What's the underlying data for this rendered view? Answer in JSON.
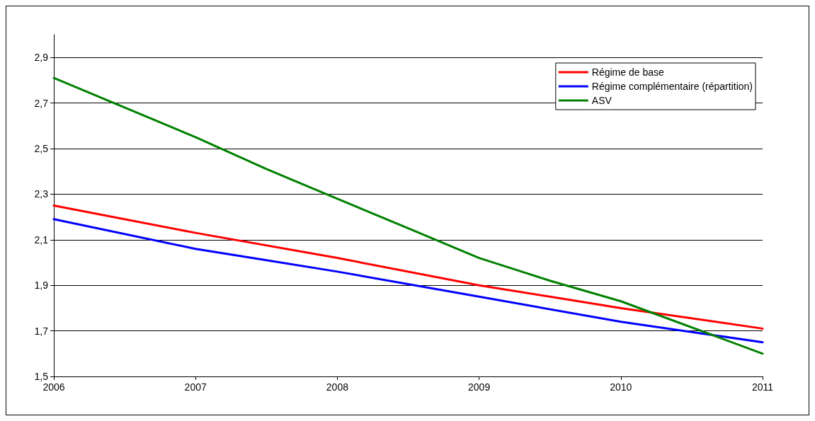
{
  "chart_data": {
    "type": "line",
    "xlim": [
      2006,
      2011
    ],
    "xticks": [
      2006,
      2007,
      2008,
      2009,
      2010,
      2011
    ],
    "ylim": [
      1.5,
      3.0
    ],
    "yticks": [
      {
        "value": 1.5,
        "label": "1,5"
      },
      {
        "value": 1.7,
        "label": "1,7"
      },
      {
        "value": 1.9,
        "label": "1,9"
      },
      {
        "value": 2.1,
        "label": "2,1"
      },
      {
        "value": 2.3,
        "label": "2,3"
      },
      {
        "value": 2.5,
        "label": "2,5"
      },
      {
        "value": 2.7,
        "label": "2,7"
      },
      {
        "value": 2.9,
        "label": "2,9"
      }
    ],
    "grid": "y",
    "legend": "top right",
    "marker": "none",
    "line_style": "solid",
    "series": [
      {
        "name": "Régime de base",
        "color": "#ff0000",
        "x": [
          2006,
          2007,
          2008,
          2009,
          2009.5,
          2010,
          2011
        ],
        "values": [
          2.25,
          2.13,
          2.02,
          1.9,
          1.85,
          1.8,
          1.71
        ]
      },
      {
        "name": "Régime complémentaire (répartition)",
        "color": "#0000ff",
        "x": [
          2006,
          2007,
          2007.5,
          2008,
          2009,
          2010,
          2011
        ],
        "values": [
          2.19,
          2.06,
          2.01,
          1.96,
          1.85,
          1.74,
          1.65
        ]
      },
      {
        "name": "ASV",
        "color": "#008000",
        "x": [
          2006,
          2007,
          2007.5,
          2008,
          2008.5,
          2009,
          2009.25,
          2009.5,
          2010,
          2011
        ],
        "values": [
          2.81,
          2.55,
          2.41,
          2.28,
          2.15,
          2.02,
          1.97,
          1.92,
          1.83,
          1.6
        ]
      }
    ]
  }
}
